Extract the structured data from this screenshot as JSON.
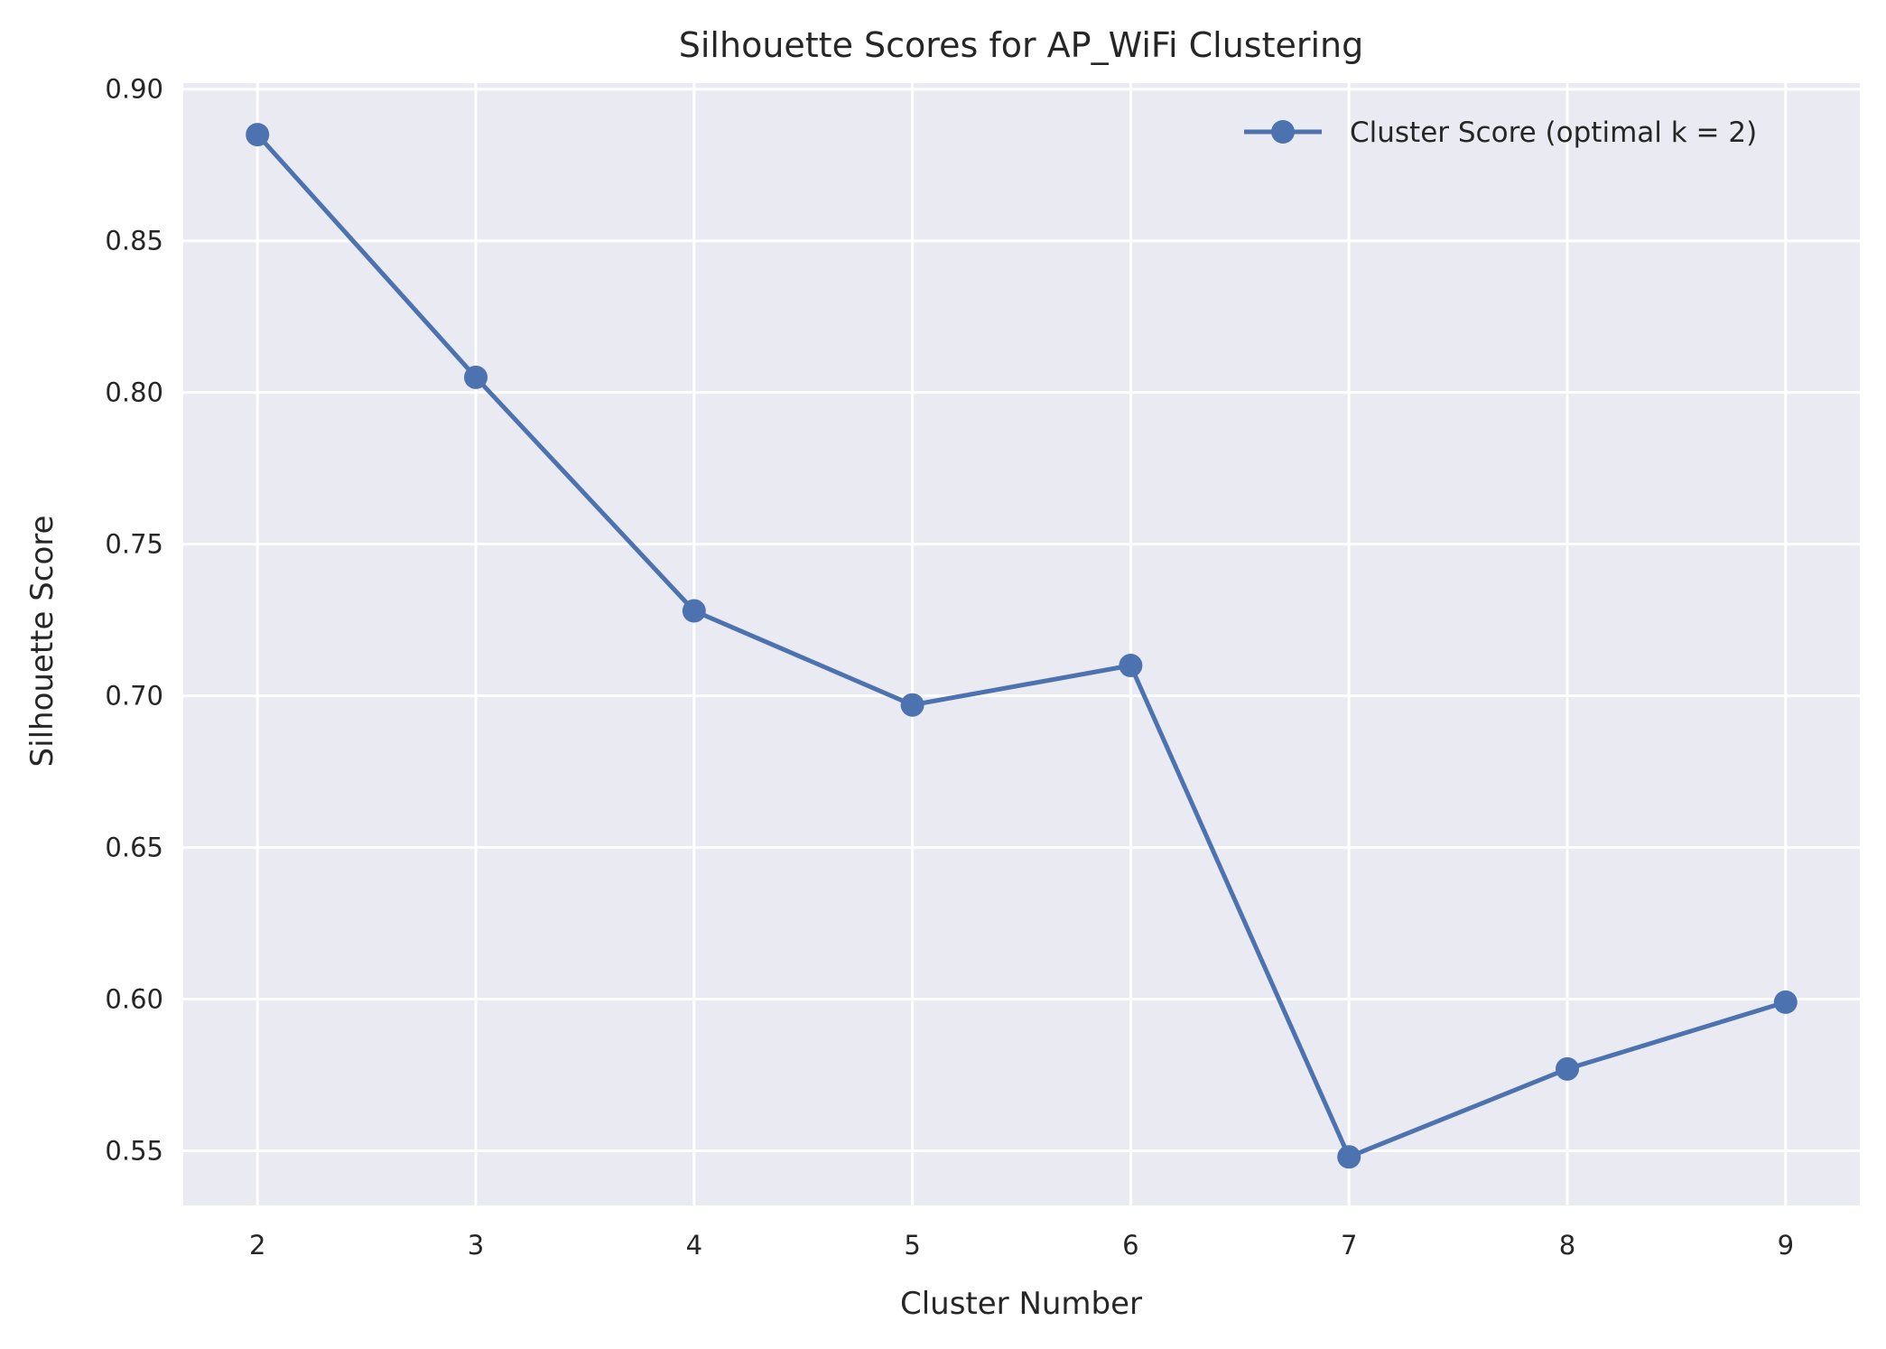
{
  "chart_data": {
    "type": "line",
    "title": "Silhouette Scores for AP_WiFi Clustering",
    "xlabel": "Cluster Number",
    "ylabel": "Silhouette Score",
    "x": [
      2,
      3,
      4,
      5,
      6,
      7,
      8,
      9
    ],
    "x_tick_labels": [
      "2",
      "3",
      "4",
      "5",
      "6",
      "7",
      "8",
      "9"
    ],
    "y_ticks": [
      0.55,
      0.6,
      0.65,
      0.7,
      0.75,
      0.8,
      0.85,
      0.9
    ],
    "y_tick_labels": [
      "0.55",
      "0.60",
      "0.65",
      "0.70",
      "0.75",
      "0.80",
      "0.85",
      "0.90"
    ],
    "xlim": [
      1.66,
      9.34
    ],
    "ylim": [
      0.532,
      0.902
    ],
    "grid": true,
    "legend_position": "top-right",
    "series": [
      {
        "name": "Cluster Score (optimal k = 2)",
        "values": [
          0.885,
          0.805,
          0.728,
          0.697,
          0.71,
          0.548,
          0.577,
          0.599
        ],
        "color": "#4c72b0"
      }
    ],
    "colors": {
      "plot_background": "#eaeaf2",
      "grid": "#ffffff",
      "text": "#262626"
    }
  }
}
